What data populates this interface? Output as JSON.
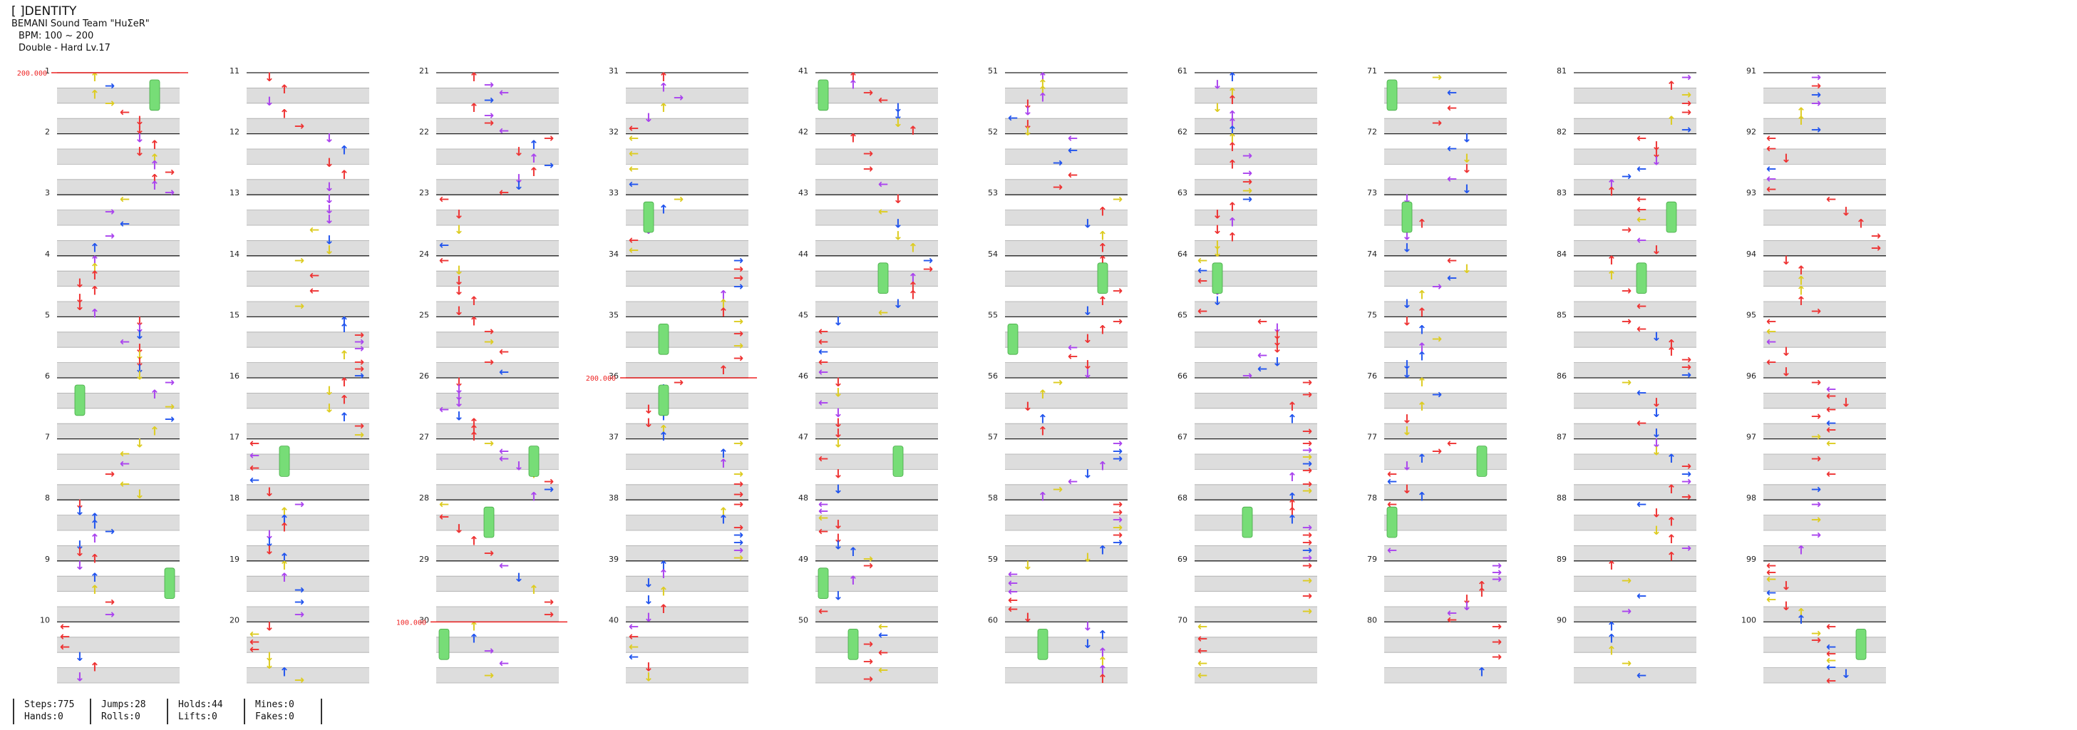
{
  "song": {
    "title": "[ ]DENTITY",
    "artist": "BEMANI Sound Team \"HuΣeR\"",
    "bpm": "BPM: 100 ~ 200",
    "difficulty": "Double - Hard  Lv.17"
  },
  "bpm_changes": [
    {
      "measure": 1,
      "label": "200.000"
    },
    {
      "measure": 36,
      "label": "200.000"
    },
    {
      "measure": 30,
      "label": "100.000"
    }
  ],
  "measures": {
    "first": 1,
    "last": 100,
    "per_column": 10,
    "labels": [
      "1",
      "2",
      "3",
      "4",
      "5",
      "6",
      "7",
      "8",
      "9",
      "10",
      "11",
      "12",
      "13",
      "14",
      "15",
      "16",
      "17",
      "18",
      "19",
      "20",
      "21",
      "22",
      "23",
      "24",
      "25",
      "26",
      "27",
      "28",
      "29",
      "30",
      "31",
      "32",
      "33",
      "34",
      "35",
      "36",
      "37",
      "38",
      "39",
      "40",
      "41",
      "42",
      "43",
      "44",
      "45",
      "46",
      "47",
      "48",
      "49",
      "50",
      "51",
      "52",
      "53",
      "54",
      "55",
      "56",
      "57",
      "58",
      "59",
      "60",
      "61",
      "62",
      "63",
      "64",
      "65",
      "66",
      "67",
      "68",
      "69",
      "70",
      "71",
      "72",
      "73",
      "74",
      "75",
      "76",
      "77",
      "78",
      "79",
      "80",
      "81",
      "82",
      "83",
      "84",
      "85",
      "86",
      "87",
      "88",
      "89",
      "90",
      "91",
      "92",
      "93",
      "94",
      "95",
      "96",
      "97",
      "98",
      "99",
      "100"
    ]
  },
  "colors": {
    "quarter": "#ee3333",
    "eighth": "#2255ee",
    "sixteenth": "#aa44ee",
    "twelfth": "#ddcc22",
    "hold": "#77dd77",
    "bpm": "#ee2222",
    "stripe": "#dddddd"
  },
  "stats": [
    {
      "line1": "Steps:775",
      "line2": "Hands:0"
    },
    {
      "line1": "Jumps:28",
      "line2": "Rolls:0"
    },
    {
      "line1": "Holds:44",
      "line2": "Lifts:0"
    },
    {
      "line1": "Mines:0",
      "line2": "Fakes:0"
    }
  ]
}
